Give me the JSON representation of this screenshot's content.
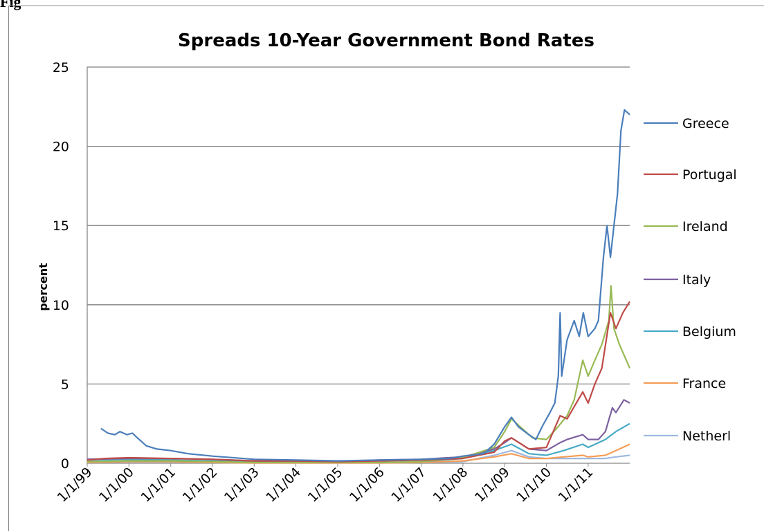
{
  "figure_label": "Fig",
  "chart_data": {
    "type": "line",
    "title": "Spreads 10-Year Government Bond Rates",
    "xlabel": "",
    "ylabel": "percent",
    "ylim": [
      0,
      25
    ],
    "y_ticks": [
      0,
      5,
      10,
      15,
      20,
      25
    ],
    "x_tick_labels": [
      "1/1/99",
      "1/1/00",
      "1/1/01",
      "1/1/02",
      "1/1/03",
      "1/1/04",
      "1/1/05",
      "1/1/06",
      "1/1/07",
      "1/1/08",
      "1/1/09",
      "1/1/10",
      "1/1/11"
    ],
    "xlim": [
      "1999-01-01",
      "2011-12-31"
    ],
    "grid": "horizontal",
    "legend_position": "right",
    "series": [
      {
        "name": "Greece",
        "color": "#4a7ebb",
        "points": [
          [
            "1999-05-01",
            2.2
          ],
          [
            "1999-07-01",
            1.9
          ],
          [
            "1999-09-01",
            1.8
          ],
          [
            "1999-10-15",
            2.0
          ],
          [
            "1999-12-15",
            1.8
          ],
          [
            "2000-02-01",
            1.9
          ],
          [
            "2000-03-15",
            1.6
          ],
          [
            "2000-06-01",
            1.1
          ],
          [
            "2000-09-01",
            0.9
          ],
          [
            "2001-01-01",
            0.8
          ],
          [
            "2001-06-01",
            0.6
          ],
          [
            "2002-01-01",
            0.45
          ],
          [
            "2003-01-01",
            0.25
          ],
          [
            "2004-01-01",
            0.2
          ],
          [
            "2005-01-01",
            0.15
          ],
          [
            "2006-01-01",
            0.2
          ],
          [
            "2007-01-01",
            0.25
          ],
          [
            "2007-09-01",
            0.3
          ],
          [
            "2008-01-01",
            0.45
          ],
          [
            "2008-07-01",
            0.6
          ],
          [
            "2008-10-01",
            1.2
          ],
          [
            "2009-01-01",
            2.3
          ],
          [
            "2009-03-01",
            2.9
          ],
          [
            "2009-05-01",
            2.3
          ],
          [
            "2009-08-01",
            1.8
          ],
          [
            "2009-10-01",
            1.5
          ],
          [
            "2009-12-01",
            2.4
          ],
          [
            "2010-02-01",
            3.2
          ],
          [
            "2010-03-15",
            3.8
          ],
          [
            "2010-04-15",
            5.5
          ],
          [
            "2010-05-01",
            9.5
          ],
          [
            "2010-05-15",
            5.5
          ],
          [
            "2010-07-01",
            7.8
          ],
          [
            "2010-09-01",
            9.0
          ],
          [
            "2010-10-15",
            8.0
          ],
          [
            "2010-11-20",
            9.5
          ],
          [
            "2011-01-01",
            8.0
          ],
          [
            "2011-03-01",
            8.5
          ],
          [
            "2011-04-01",
            9.0
          ],
          [
            "2011-05-15",
            13.0
          ],
          [
            "2011-06-15",
            15.0
          ],
          [
            "2011-07-15",
            13.0
          ],
          [
            "2011-08-15",
            15.0
          ],
          [
            "2011-09-15",
            17.0
          ],
          [
            "2011-10-15",
            21.0
          ],
          [
            "2011-11-15",
            22.3
          ],
          [
            "2011-12-31",
            22.0
          ]
        ]
      },
      {
        "name": "Portugal",
        "color": "#be4b48",
        "points": [
          [
            "1999-01-01",
            0.2
          ],
          [
            "1999-06-01",
            0.3
          ],
          [
            "2000-01-01",
            0.35
          ],
          [
            "2001-01-01",
            0.3
          ],
          [
            "2002-01-01",
            0.25
          ],
          [
            "2003-01-01",
            0.15
          ],
          [
            "2004-01-01",
            0.15
          ],
          [
            "2005-01-01",
            0.1
          ],
          [
            "2006-01-01",
            0.15
          ],
          [
            "2007-01-01",
            0.2
          ],
          [
            "2008-01-01",
            0.3
          ],
          [
            "2008-10-01",
            0.7
          ],
          [
            "2009-01-01",
            1.4
          ],
          [
            "2009-03-01",
            1.6
          ],
          [
            "2009-08-01",
            0.9
          ],
          [
            "2010-01-01",
            1.0
          ],
          [
            "2010-05-01",
            3.0
          ],
          [
            "2010-07-01",
            2.8
          ],
          [
            "2010-11-15",
            4.5
          ],
          [
            "2011-01-01",
            3.8
          ],
          [
            "2011-03-01",
            5.0
          ],
          [
            "2011-05-01",
            6.0
          ],
          [
            "2011-07-15",
            9.5
          ],
          [
            "2011-09-01",
            8.5
          ],
          [
            "2011-11-01",
            9.5
          ],
          [
            "2011-12-31",
            10.2
          ]
        ]
      },
      {
        "name": "Ireland",
        "color": "#98b954",
        "points": [
          [
            "1999-01-01",
            0.1
          ],
          [
            "2000-01-01",
            0.15
          ],
          [
            "2001-01-01",
            0.15
          ],
          [
            "2002-01-01",
            0.1
          ],
          [
            "2003-01-01",
            0.05
          ],
          [
            "2004-01-01",
            0.05
          ],
          [
            "2005-01-01",
            0.05
          ],
          [
            "2006-01-01",
            0.05
          ],
          [
            "2007-01-01",
            0.1
          ],
          [
            "2008-01-01",
            0.35
          ],
          [
            "2008-10-01",
            1.0
          ],
          [
            "2009-01-01",
            2.0
          ],
          [
            "2009-03-01",
            2.8
          ],
          [
            "2009-06-01",
            2.2
          ],
          [
            "2009-09-01",
            1.6
          ],
          [
            "2010-01-01",
            1.5
          ],
          [
            "2010-04-01",
            2.2
          ],
          [
            "2010-07-01",
            3.0
          ],
          [
            "2010-09-01",
            4.0
          ],
          [
            "2010-11-15",
            6.5
          ],
          [
            "2011-01-01",
            5.5
          ],
          [
            "2011-03-01",
            6.5
          ],
          [
            "2011-05-01",
            7.5
          ],
          [
            "2011-07-01",
            9.0
          ],
          [
            "2011-07-20",
            11.2
          ],
          [
            "2011-08-15",
            8.5
          ],
          [
            "2011-10-01",
            7.5
          ],
          [
            "2011-12-31",
            6.0
          ]
        ]
      },
      {
        "name": "Italy",
        "color": "#7d60a0",
        "points": [
          [
            "1999-01-01",
            0.25
          ],
          [
            "2000-01-01",
            0.3
          ],
          [
            "2001-01-01",
            0.3
          ],
          [
            "2002-01-01",
            0.25
          ],
          [
            "2003-01-01",
            0.15
          ],
          [
            "2004-01-01",
            0.12
          ],
          [
            "2005-01-01",
            0.12
          ],
          [
            "2006-01-01",
            0.2
          ],
          [
            "2007-01-01",
            0.25
          ],
          [
            "2008-01-01",
            0.4
          ],
          [
            "2008-10-01",
            0.9
          ],
          [
            "2009-01-01",
            1.3
          ],
          [
            "2009-03-01",
            1.6
          ],
          [
            "2009-08-01",
            0.9
          ],
          [
            "2010-01-01",
            0.8
          ],
          [
            "2010-05-01",
            1.3
          ],
          [
            "2010-07-01",
            1.5
          ],
          [
            "2010-11-15",
            1.8
          ],
          [
            "2011-01-01",
            1.5
          ],
          [
            "2011-04-01",
            1.5
          ],
          [
            "2011-06-01",
            2.0
          ],
          [
            "2011-08-01",
            3.5
          ],
          [
            "2011-09-01",
            3.2
          ],
          [
            "2011-11-10",
            4.0
          ],
          [
            "2011-12-31",
            3.8
          ]
        ]
      },
      {
        "name": "Belgium",
        "color": "#46aac5",
        "points": [
          [
            "1999-01-01",
            0.2
          ],
          [
            "2000-01-01",
            0.25
          ],
          [
            "2001-01-01",
            0.2
          ],
          [
            "2002-01-01",
            0.15
          ],
          [
            "2003-01-01",
            0.1
          ],
          [
            "2004-01-01",
            0.05
          ],
          [
            "2005-01-01",
            0.05
          ],
          [
            "2006-01-01",
            0.05
          ],
          [
            "2007-01-01",
            0.1
          ],
          [
            "2008-01-01",
            0.3
          ],
          [
            "2008-10-01",
            0.8
          ],
          [
            "2009-03-01",
            1.2
          ],
          [
            "2009-08-01",
            0.6
          ],
          [
            "2010-01-01",
            0.5
          ],
          [
            "2010-06-01",
            0.8
          ],
          [
            "2010-11-15",
            1.2
          ],
          [
            "2011-01-01",
            1.0
          ],
          [
            "2011-06-01",
            1.5
          ],
          [
            "2011-09-01",
            2.0
          ],
          [
            "2011-12-31",
            2.5
          ]
        ]
      },
      {
        "name": "France",
        "color": "#f59d56",
        "points": [
          [
            "1999-01-01",
            0.05
          ],
          [
            "2000-01-01",
            0.1
          ],
          [
            "2001-01-01",
            0.1
          ],
          [
            "2002-01-01",
            0.05
          ],
          [
            "2003-01-01",
            0.02
          ],
          [
            "2004-01-01",
            0.02
          ],
          [
            "2005-01-01",
            0.02
          ],
          [
            "2006-01-01",
            0.02
          ],
          [
            "2007-01-01",
            0.05
          ],
          [
            "2008-01-01",
            0.15
          ],
          [
            "2008-10-01",
            0.4
          ],
          [
            "2009-03-01",
            0.6
          ],
          [
            "2009-08-01",
            0.3
          ],
          [
            "2010-01-01",
            0.3
          ],
          [
            "2010-06-01",
            0.4
          ],
          [
            "2010-11-15",
            0.5
          ],
          [
            "2011-01-01",
            0.4
          ],
          [
            "2011-06-01",
            0.5
          ],
          [
            "2011-09-01",
            0.8
          ],
          [
            "2011-12-31",
            1.2
          ]
        ]
      },
      {
        "name": "Netherl",
        "color": "#9db9e1",
        "points": [
          [
            "1999-01-01",
            0.05
          ],
          [
            "2000-01-01",
            0.08
          ],
          [
            "2001-01-01",
            0.08
          ],
          [
            "2002-01-01",
            0.05
          ],
          [
            "2003-01-01",
            0.02
          ],
          [
            "2004-01-01",
            0.02
          ],
          [
            "2005-01-01",
            0.02
          ],
          [
            "2006-01-01",
            0.02
          ],
          [
            "2007-01-01",
            0.05
          ],
          [
            "2008-01-01",
            0.1
          ],
          [
            "2008-10-01",
            0.5
          ],
          [
            "2009-03-01",
            0.8
          ],
          [
            "2009-08-01",
            0.4
          ],
          [
            "2010-01-01",
            0.3
          ],
          [
            "2010-06-01",
            0.3
          ],
          [
            "2011-01-01",
            0.3
          ],
          [
            "2011-06-01",
            0.3
          ],
          [
            "2011-09-01",
            0.4
          ],
          [
            "2011-12-31",
            0.5
          ]
        ]
      }
    ]
  }
}
